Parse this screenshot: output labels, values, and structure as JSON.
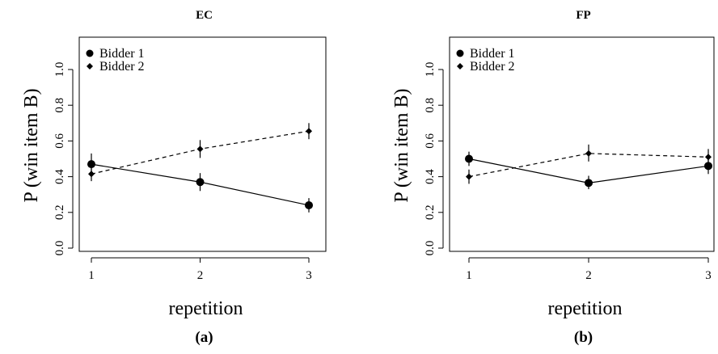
{
  "chart_data": [
    {
      "type": "line",
      "title": "EC",
      "caption": "(a)",
      "xlabel": "repetition",
      "ylabel": "P (win item B)",
      "x": [
        1,
        2,
        3
      ],
      "x_tick_labels": [
        "1",
        "2",
        "3"
      ],
      "xlim": [
        1,
        3
      ],
      "ylim": [
        0.0,
        1.0
      ],
      "y_tick_labels": [
        "0.0",
        "0.2",
        "0.4",
        "0.6",
        "0.8",
        "1.0"
      ],
      "grid": false,
      "legend_position": "top-left",
      "series": [
        {
          "name": "Bidder 1",
          "values": [
            0.47,
            0.37,
            0.24
          ],
          "err_low": [
            0.41,
            0.32,
            0.2
          ],
          "err_high": [
            0.53,
            0.42,
            0.28
          ],
          "marker": "circle",
          "line_style": "solid"
        },
        {
          "name": "Bidder 2",
          "values": [
            0.415,
            0.555,
            0.655
          ],
          "err_low": [
            0.375,
            0.505,
            0.61
          ],
          "err_high": [
            0.455,
            0.605,
            0.7
          ],
          "marker": "diamond",
          "line_style": "dashed"
        }
      ]
    },
    {
      "type": "line",
      "title": "FP",
      "caption": "(b)",
      "xlabel": "repetition",
      "ylabel": "P (win item B)",
      "x": [
        1,
        2,
        3
      ],
      "x_tick_labels": [
        "1",
        "2",
        "3"
      ],
      "xlim": [
        1,
        3
      ],
      "ylim": [
        0.0,
        1.0
      ],
      "y_tick_labels": [
        "0.0",
        "0.2",
        "0.4",
        "0.6",
        "0.8",
        "1.0"
      ],
      "grid": false,
      "legend_position": "top-left",
      "series": [
        {
          "name": "Bidder 1",
          "values": [
            0.5,
            0.365,
            0.46
          ],
          "err_low": [
            0.46,
            0.33,
            0.415
          ],
          "err_high": [
            0.54,
            0.405,
            0.505
          ],
          "marker": "circle",
          "line_style": "solid"
        },
        {
          "name": "Bidder 2",
          "values": [
            0.4,
            0.53,
            0.51
          ],
          "err_low": [
            0.36,
            0.485,
            0.465
          ],
          "err_high": [
            0.44,
            0.58,
            0.555
          ],
          "marker": "diamond",
          "line_style": "dashed"
        }
      ]
    }
  ]
}
